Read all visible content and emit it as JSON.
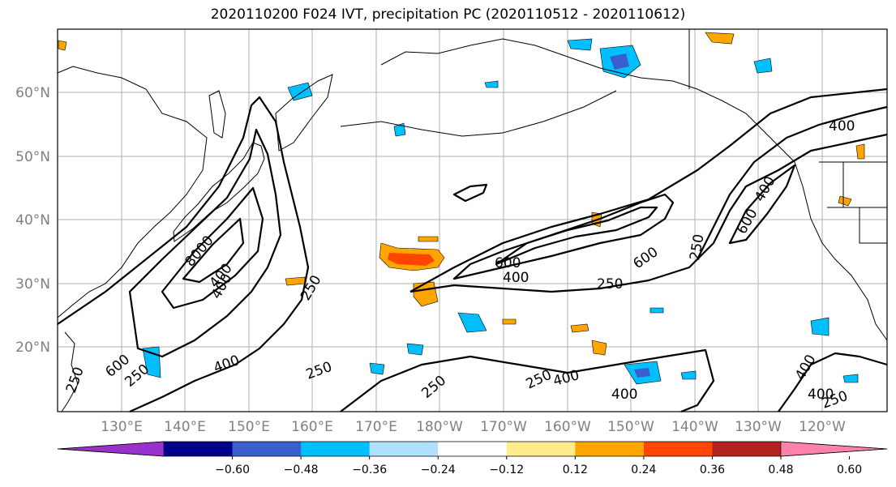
{
  "title": "2020110200 F024 IVT, precipitation PC (2020110512 - 2020110612)",
  "map": {
    "lat_labels": [
      "60°N",
      "50°N",
      "40°N",
      "30°N",
      "20°N"
    ],
    "lon_labels": [
      "130°E",
      "140°E",
      "150°E",
      "160°E",
      "170°E",
      "180°W",
      "170°W",
      "160°W",
      "150°W",
      "140°W",
      "130°W",
      "120°W"
    ],
    "contour_labels": [
      "400",
      "400",
      "600",
      "400",
      "250",
      "600",
      "250",
      "600",
      "250",
      "400",
      "400",
      "250",
      "600",
      "250",
      "400",
      "250",
      "250",
      "400",
      "400",
      "250",
      "400",
      "250",
      "8000",
      "400"
    ]
  },
  "colorbar": {
    "ticks": [
      "−0.60",
      "−0.48",
      "−0.36",
      "−0.24",
      "−0.12",
      "0.12",
      "0.24",
      "0.36",
      "0.48",
      "0.60"
    ],
    "colors": [
      "#9932cc",
      "#00008b",
      "#3a5fcd",
      "#00bfff",
      "#b0e2ff",
      "#ffffff",
      "#ffec8b",
      "#ffa500",
      "#ff4500",
      "#b22222",
      "#ff82ab"
    ]
  }
}
